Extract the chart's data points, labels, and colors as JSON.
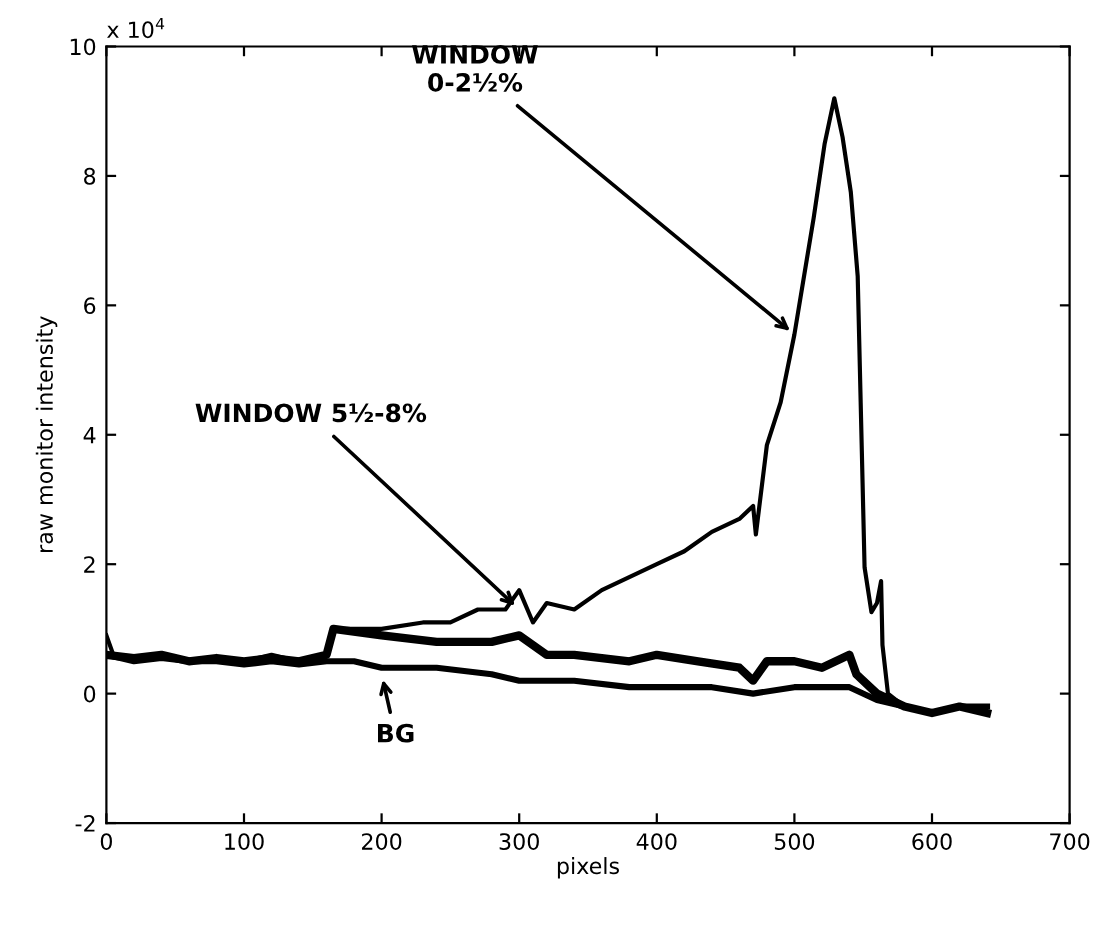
{
  "chart_data": {
    "type": "line",
    "xlabel": "pixels",
    "ylabel": "raw monitor intensity",
    "xlim": [
      0,
      700
    ],
    "xticks": [
      0,
      100,
      200,
      300,
      400,
      500,
      600,
      700
    ],
    "ylim": [
      -2,
      10
    ],
    "yticks": [
      -2,
      0,
      2,
      4,
      6,
      8,
      10
    ],
    "grid": false,
    "legend": false,
    "annotations": [
      "x 10$^{4}$",
      {
        "text": "WINDOW\n0-2½%",
        "x": 500,
        "y": 5.55
      },
      {
        "text": "WINDOW 5½-8%",
        "x": 300,
        "y": 1.3
      },
      {
        "text": "BG",
        "x": 200,
        "y": 0.3
      }
    ],
    "series": [
      {
        "color": "#000000",
        "x": [
          0,
          5,
          20,
          40,
          60,
          80,
          100,
          120,
          140,
          160,
          165,
          200,
          230,
          250,
          270,
          290,
          300,
          310,
          320,
          340,
          360,
          380,
          400,
          420,
          440,
          460,
          470,
          472,
          480,
          490,
          500,
          514,
          522,
          529,
          535,
          541,
          546,
          549,
          551,
          556,
          560,
          563,
          564,
          568,
          580,
          600,
          620,
          640
        ],
        "values": [
          0.9,
          0.6,
          0.5,
          0.6,
          0.5,
          0.55,
          0.5,
          0.6,
          0.5,
          0.6,
          1.0,
          1.0,
          1.1,
          1.1,
          1.3,
          1.3,
          1.6,
          1.1,
          1.4,
          1.3,
          1.6,
          1.8,
          2.0,
          2.2,
          2.5,
          2.7,
          2.9,
          2.46,
          3.84,
          4.5,
          5.55,
          7.35,
          8.5,
          9.2,
          8.6,
          7.75,
          6.45,
          3.75,
          1.95,
          1.26,
          1.4,
          1.74,
          0.75,
          0.0,
          -0.2,
          -0.3,
          -0.2,
          -0.2
        ]
      },
      {
        "color": "#000000",
        "x": [
          0,
          20,
          40,
          60,
          80,
          100,
          120,
          140,
          160,
          165,
          200,
          240,
          280,
          300,
          320,
          340,
          380,
          400,
          430,
          460,
          470,
          480,
          500,
          520,
          540,
          545,
          560,
          580,
          600,
          620,
          640
        ],
        "values": [
          0.6,
          0.55,
          0.6,
          0.5,
          0.55,
          0.5,
          0.55,
          0.5,
          0.6,
          1.0,
          0.9,
          0.8,
          0.8,
          0.9,
          0.6,
          0.6,
          0.5,
          0.6,
          0.5,
          0.4,
          0.2,
          0.5,
          0.5,
          0.4,
          0.6,
          0.3,
          0.0,
          -0.2,
          -0.3,
          -0.2,
          -0.3
        ]
      },
      {
        "color": "#000000",
        "x": [
          0,
          20,
          40,
          60,
          80,
          100,
          120,
          140,
          160,
          180,
          200,
          240,
          280,
          300,
          340,
          380,
          400,
          440,
          470,
          500,
          540,
          560,
          580,
          600,
          620,
          640
        ],
        "values": [
          0.6,
          0.5,
          0.55,
          0.5,
          0.5,
          0.45,
          0.5,
          0.45,
          0.5,
          0.5,
          0.4,
          0.4,
          0.3,
          0.2,
          0.2,
          0.1,
          0.1,
          0.1,
          0.0,
          0.1,
          0.1,
          -0.1,
          -0.2,
          -0.3,
          -0.2,
          -0.2
        ]
      }
    ]
  }
}
